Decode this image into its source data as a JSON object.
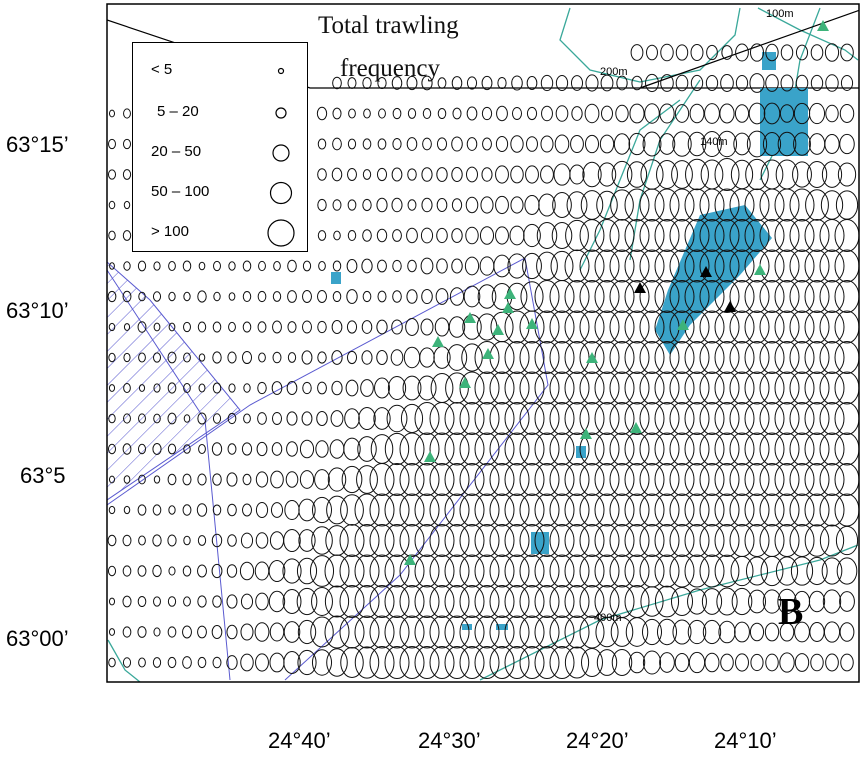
{
  "title": {
    "line1": "Total trawling",
    "line2": "frequency"
  },
  "panel_letter": "B",
  "legend": {
    "items": [
      {
        "label": "< 5"
      },
      {
        "label": "5 – 20"
      },
      {
        "label": "20 – 50"
      },
      {
        "label": "50 – 100"
      },
      {
        "label": "> 100"
      }
    ]
  },
  "lat_labels": [
    "63°15’",
    "63°10’",
    "63°5",
    "63°00’"
  ],
  "lon_labels": [
    "24°40’",
    "24°30’",
    "24°20’",
    "24°10’"
  ],
  "depth_labels": {
    "d100": "100m",
    "d200": "200m",
    "d140": "140m",
    "d400": "400m"
  },
  "colors": {
    "circle": "#111111",
    "contour": "#3aa89a",
    "boundary": "#5a5ad0",
    "fill_blue": "#3aa3c9",
    "marker_green": "#3db37a",
    "marker_black": "#000000"
  },
  "markers": {
    "green": "triangle",
    "black": "triangle"
  }
}
